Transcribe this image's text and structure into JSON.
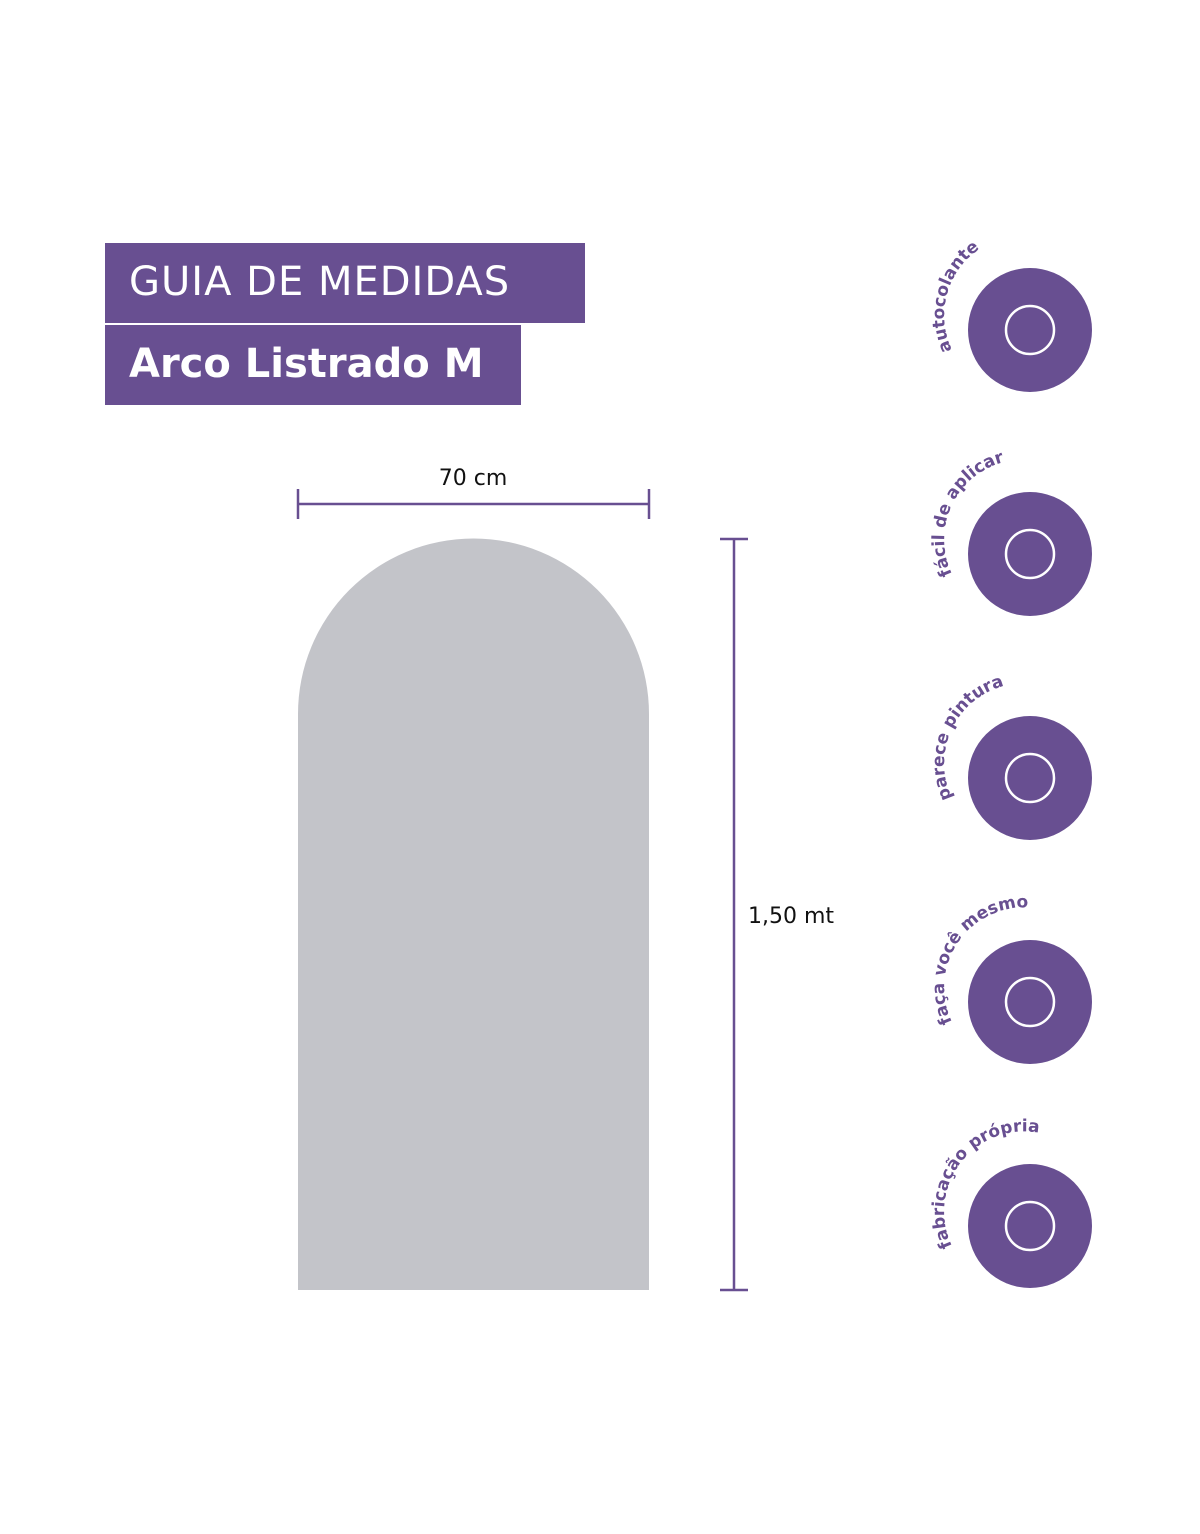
{
  "header": {
    "title": "GUIA DE MEDIDAS",
    "product": "Arco Listrado M"
  },
  "dimensions": {
    "width": "70 cm",
    "height": "1,50 mt"
  },
  "badges": [
    {
      "label": "autocolante"
    },
    {
      "label": "fácil de aplicar"
    },
    {
      "label": "parece pintura"
    },
    {
      "label": "faça você mesmo"
    },
    {
      "label": "fabricação própria"
    }
  ]
}
